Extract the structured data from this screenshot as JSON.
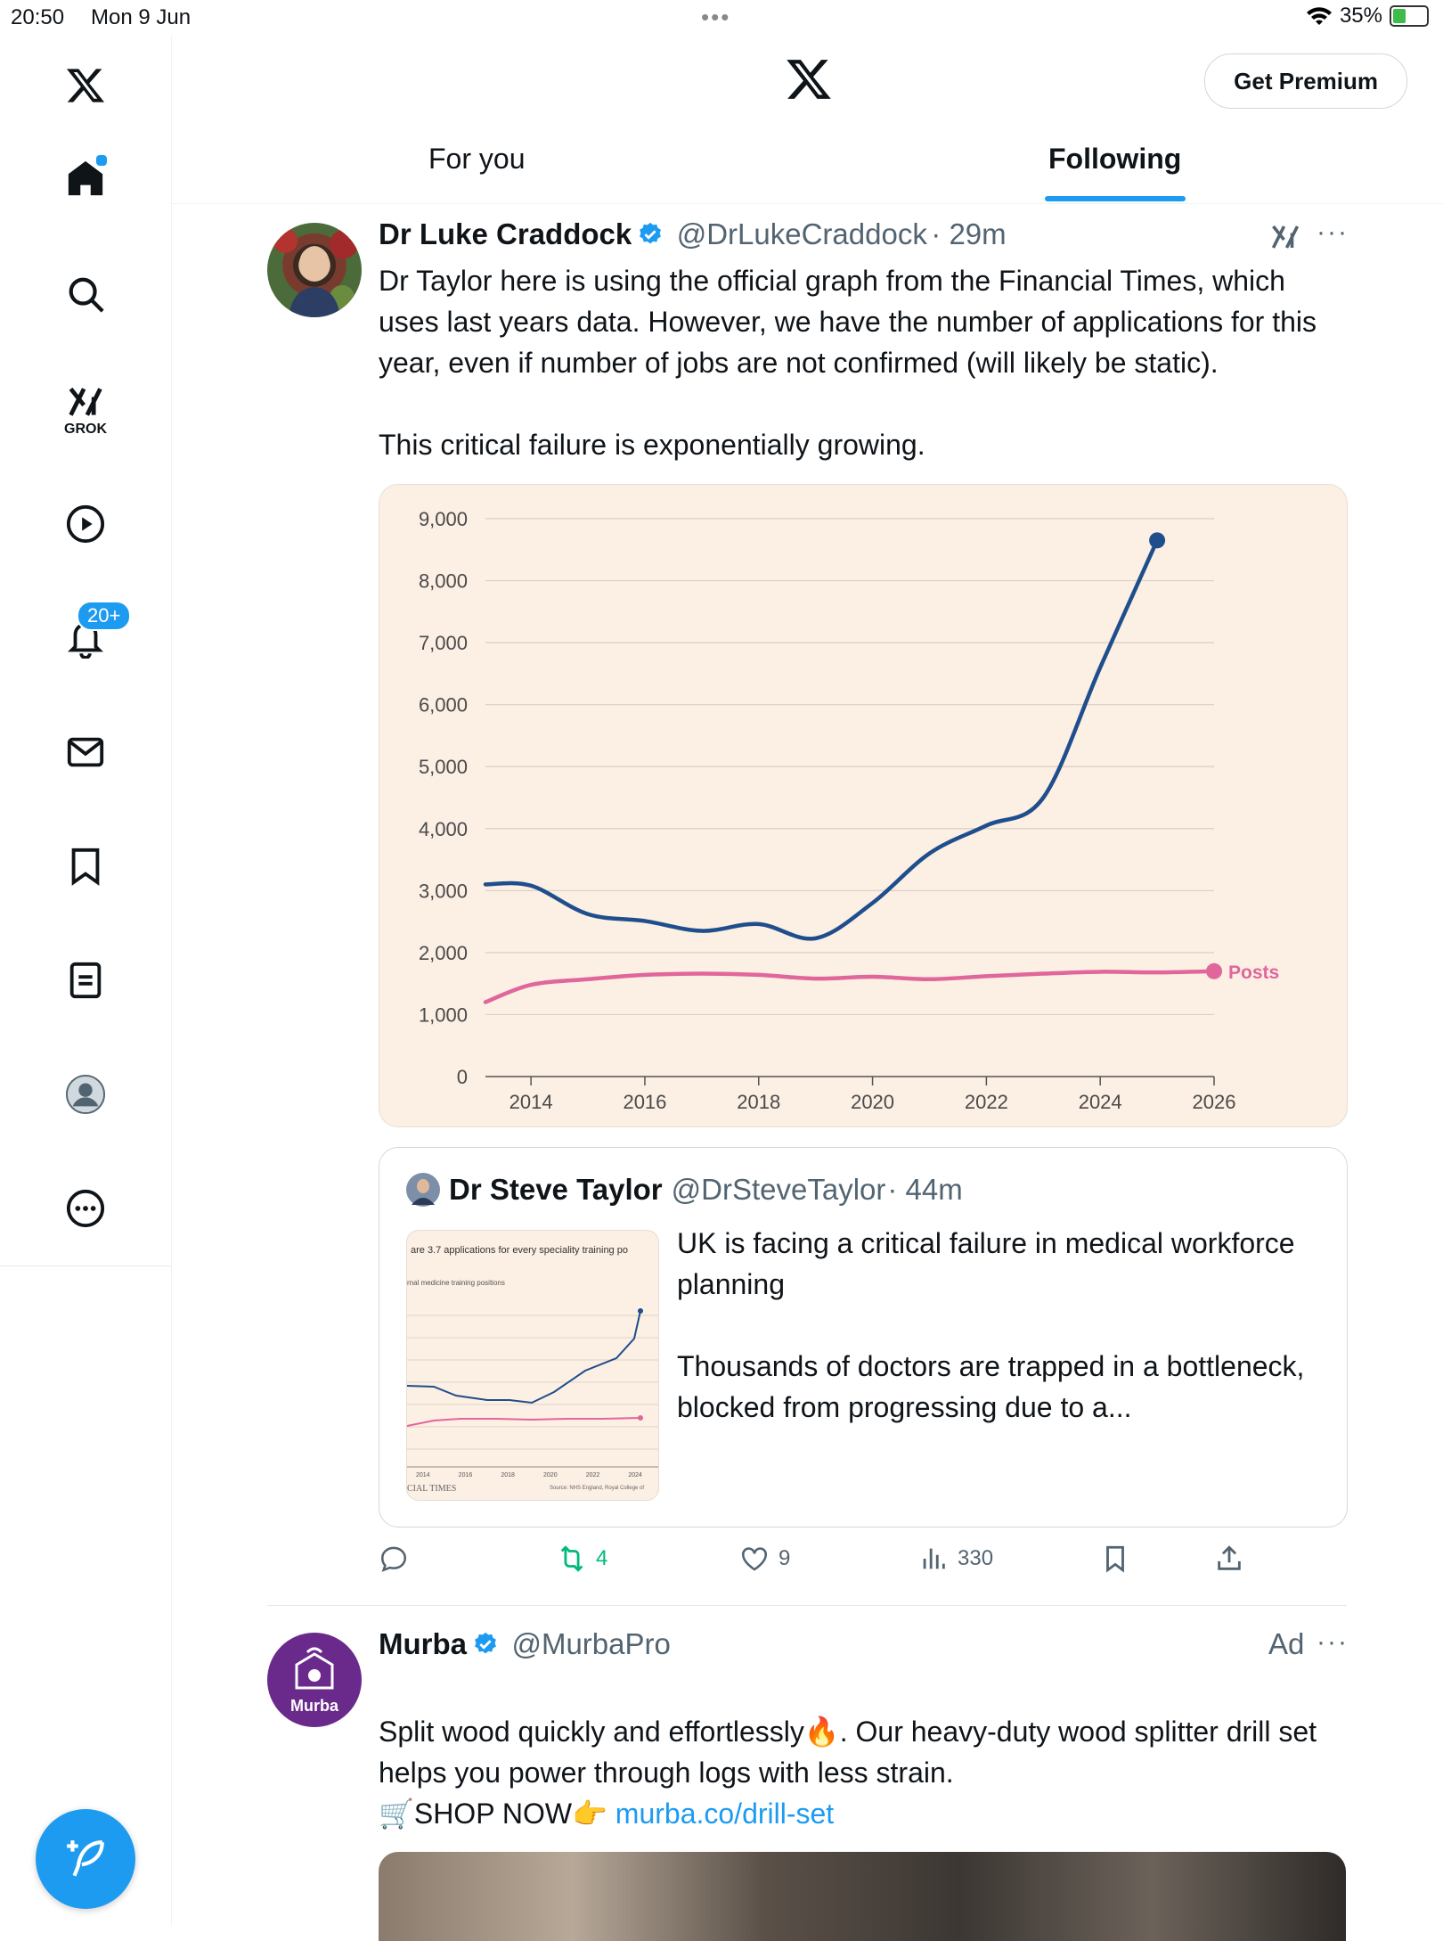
{
  "status": {
    "time": "20:50",
    "date": "Mon 9 Jun",
    "battery": "35%"
  },
  "header": {
    "premium_label": "Get Premium",
    "tabs": [
      {
        "label": "For you"
      },
      {
        "label": "Following"
      }
    ]
  },
  "sidebar": {
    "grok_label": "GROK",
    "notifications_badge": "20+"
  },
  "post1": {
    "name": "Dr Luke Craddock",
    "handle": "@DrLukeCraddock",
    "time": "· 29m",
    "text": "Dr Taylor here is using the official graph from the Financial Times, which uses last years data. However, we have the number of applications for this year, even if number of jobs are not confirmed (will likely be static).\n\nThis critical failure is exponentially growing.",
    "actions": {
      "reposts": "4",
      "likes": "9",
      "views": "330"
    }
  },
  "chart_data": {
    "type": "line",
    "xlim": [
      2013.2,
      2026
    ],
    "ylim": [
      0,
      9000
    ],
    "x_ticks": [
      2014,
      2016,
      2018,
      2020,
      2022,
      2024,
      2026
    ],
    "y_ticks": [
      0,
      1000,
      2000,
      3000,
      4000,
      5000,
      6000,
      7000,
      8000,
      9000
    ],
    "y_tick_labels": [
      "0",
      "1,000",
      "2,000",
      "3,000",
      "4,000",
      "5,000",
      "6,000",
      "7,000",
      "8,000",
      "9,000"
    ],
    "series": [
      {
        "color": "#1f4e8c",
        "x": [
          2013.2,
          2014,
          2015,
          2016,
          2017,
          2018,
          2019,
          2020,
          2021,
          2022,
          2023,
          2024,
          2025
        ],
        "values": [
          3100,
          3080,
          2620,
          2510,
          2350,
          2460,
          2230,
          2800,
          3600,
          4050,
          4500,
          6600,
          8650
        ]
      },
      {
        "name": "Posts",
        "color": "#e0669b",
        "x": [
          2013.2,
          2014,
          2015,
          2016,
          2017,
          2018,
          2019,
          2020,
          2021,
          2022,
          2023,
          2024,
          2025,
          2026
        ],
        "values": [
          1200,
          1480,
          1570,
          1640,
          1660,
          1640,
          1580,
          1610,
          1570,
          1620,
          1660,
          1690,
          1680,
          1700
        ]
      }
    ],
    "grid": true
  },
  "quote": {
    "name": "Dr Steve Taylor",
    "handle": "@DrSteveTaylor",
    "time": "· 44m",
    "text": "UK is facing a critical failure in medical workforce planning\n\nThousands of doctors are trapped in a bottleneck, blocked from progressing due to a...",
    "thumb_title": "are 3.7 applications for every speciality training po",
    "thumb_subtitle": "rnal medicine training positions",
    "thumb_footer_left": "CIAL TIMES",
    "thumb_footer_right": "Source: NHS England, Royal College of",
    "thumb_x_labels": [
      "2014",
      "2016",
      "2018",
      "2020",
      "2022",
      "2024"
    ]
  },
  "post2": {
    "name": "Murba",
    "handle": "@MurbaPro",
    "ad_label": "Ad",
    "avatar_text": "Murba",
    "text_line1": "Split wood quickly and effortlessly🔥. Our heavy-duty wood splitter drill set helps you power through logs with less strain.",
    "shop_text": "🛒SHOP NOW👉 ",
    "link": "murba.co/drill-set"
  }
}
